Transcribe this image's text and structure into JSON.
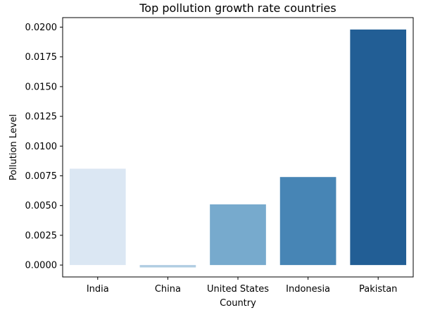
{
  "chart_data": {
    "type": "bar",
    "title": "Top pollution growth rate countries",
    "xlabel": "Country",
    "ylabel": "Pollution Level",
    "categories": [
      "India",
      "China",
      "United States",
      "Indonesia",
      "Pakistan"
    ],
    "values": [
      0.0081,
      -0.0002,
      0.0051,
      0.0074,
      0.0198
    ],
    "ylim": [
      -0.001,
      0.0208
    ],
    "yticks": [
      0.0,
      0.0025,
      0.005,
      0.0075,
      0.01,
      0.0125,
      0.015,
      0.0175,
      0.02
    ],
    "ytick_labels": [
      "0.0000",
      "0.0025",
      "0.0050",
      "0.0075",
      "0.0100",
      "0.0125",
      "0.0150",
      "0.0175",
      "0.0200"
    ],
    "colors": [
      "#dbe7f3",
      "#b0cde2",
      "#77aacd",
      "#4785b5",
      "#225e95"
    ],
    "grid": false,
    "legend": "none"
  }
}
